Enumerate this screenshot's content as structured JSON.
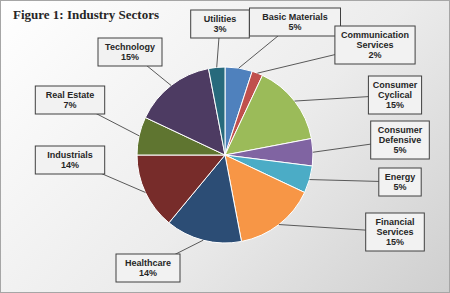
{
  "chart_data": {
    "type": "pie",
    "title": "Figure 1: Industry Sectors",
    "categories": [
      "Basic Materials",
      "Communication Services",
      "Consumer Cyclical",
      "Consumer Defensive",
      "Energy",
      "Financial Services",
      "Healthcare",
      "Industrials",
      "Real Estate",
      "Technology",
      "Utilities"
    ],
    "values": [
      5,
      2,
      15,
      5,
      5,
      15,
      14,
      14,
      7,
      15,
      3
    ],
    "value_labels": [
      "5%",
      "2%",
      "15%",
      "5%",
      "5%",
      "15%",
      "14%",
      "14%",
      "7%",
      "15%",
      "3%"
    ],
    "colors": [
      "#4f81bd",
      "#c0504d",
      "#9bbb59",
      "#8064a2",
      "#4bacc6",
      "#f79646",
      "#2c4d75",
      "#772c2a",
      "#5f7530",
      "#4d3b62",
      "#276a7c"
    ],
    "data_labels": true
  }
}
